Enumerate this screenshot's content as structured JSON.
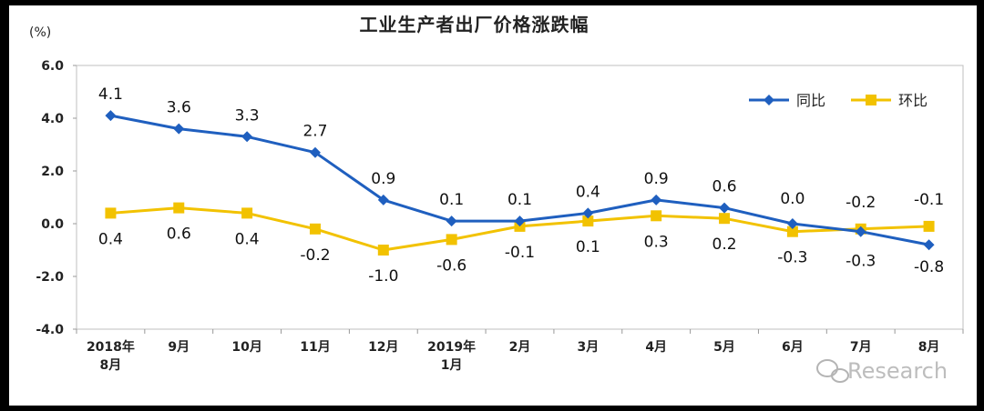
{
  "chart_data": {
    "type": "line",
    "title": "工业生产者出厂价格涨跌幅",
    "ylabel": "(%)",
    "ylim": [
      -4.0,
      6.0
    ],
    "yticks": [
      "6.0",
      "4.0",
      "2.0",
      "0.0",
      "-2.0",
      "-4.0"
    ],
    "categories": [
      [
        "2018年",
        "8月"
      ],
      [
        "9月"
      ],
      [
        "10月"
      ],
      [
        "11月"
      ],
      [
        "12月"
      ],
      [
        "2019年",
        "1月"
      ],
      [
        "2月"
      ],
      [
        "3月"
      ],
      [
        "4月"
      ],
      [
        "5月"
      ],
      [
        "6月"
      ],
      [
        "7月"
      ],
      [
        "8月"
      ]
    ],
    "legend_position": "top-right",
    "series": [
      {
        "name": "同比",
        "color": "#1f5fbf",
        "marker": "diamond",
        "values": [
          4.1,
          3.6,
          3.3,
          2.7,
          0.9,
          0.1,
          0.1,
          0.4,
          0.9,
          0.6,
          0.0,
          -0.3,
          -0.8
        ],
        "labels": [
          "4.1",
          "3.6",
          "3.3",
          "2.7",
          "0.9",
          "0.1",
          "0.1",
          "0.4",
          "0.9",
          "0.6",
          "0.0",
          "-0.3",
          "-0.8"
        ]
      },
      {
        "name": "环比",
        "color": "#f2c200",
        "marker": "square",
        "values": [
          0.4,
          0.6,
          0.4,
          -0.2,
          -1.0,
          -0.6,
          -0.1,
          0.1,
          0.3,
          0.2,
          -0.3,
          -0.2,
          -0.1
        ],
        "labels": [
          "0.4",
          "0.6",
          "0.4",
          "-0.2",
          "-1.0",
          "-0.6",
          "-0.1",
          "0.1",
          "0.3",
          "0.2",
          "-0.3",
          "-0.2",
          "-0.1"
        ]
      }
    ]
  },
  "watermark": {
    "icon": "wechat-icon",
    "text": "Research"
  }
}
